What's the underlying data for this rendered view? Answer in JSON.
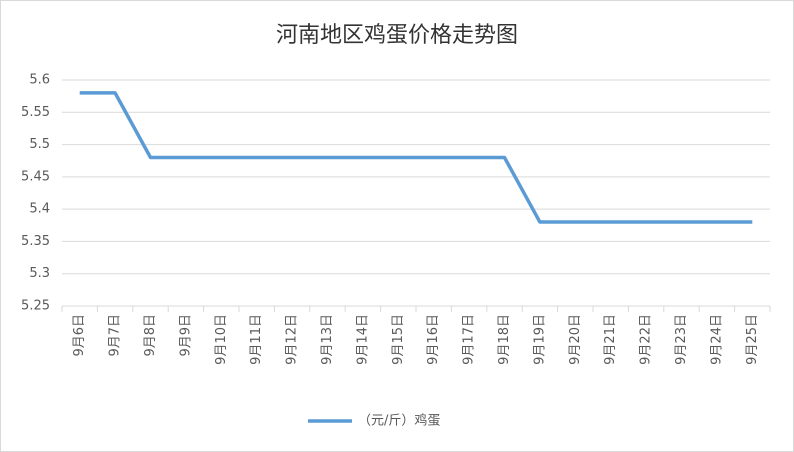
{
  "chart_data": {
    "type": "line",
    "title": "河南地区鸡蛋价格走势图",
    "categories": [
      "9月6日",
      "9月7日",
      "9月8日",
      "9月9日",
      "9月10日",
      "9月11日",
      "9月12日",
      "9月13日",
      "9月14日",
      "9月15日",
      "9月16日",
      "9月17日",
      "9月18日",
      "9月19日",
      "9月20日",
      "9月21日",
      "9月22日",
      "9月23日",
      "9月24日",
      "9月25日"
    ],
    "series": [
      {
        "name": "（元/斤）鸡蛋",
        "color": "#5b9bd5",
        "values": [
          5.58,
          5.58,
          5.48,
          5.48,
          5.48,
          5.48,
          5.48,
          5.48,
          5.48,
          5.48,
          5.48,
          5.48,
          5.48,
          5.38,
          5.38,
          5.38,
          5.38,
          5.38,
          5.38,
          5.38
        ]
      }
    ],
    "ylim": [
      5.25,
      5.6
    ],
    "yticks": [
      5.25,
      5.3,
      5.35,
      5.4,
      5.45,
      5.5,
      5.55,
      5.6
    ],
    "grid": true,
    "legend": "bottom"
  }
}
